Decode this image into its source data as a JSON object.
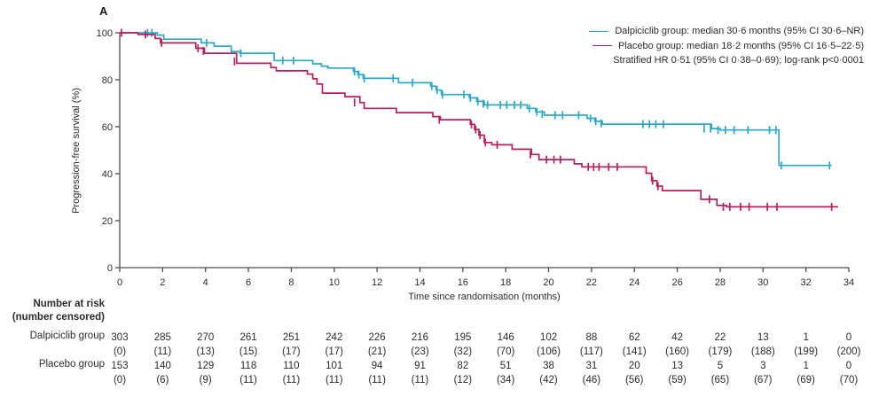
{
  "panel_label": "A",
  "colors": {
    "dalpiciclib": "#2BA8C8",
    "placebo": "#B81F5F",
    "axis": "#4d4d4d",
    "text": "#2b2b2b"
  },
  "legend": {
    "entries": [
      {
        "label": "Dalpiciclib group: median 30·6 months (95% CI 30·6–NR)",
        "color_key": "dalpiciclib"
      },
      {
        "label": "Placebo group: median 18·2 months (95% CI 16·5–22·5)",
        "color_key": "placebo"
      }
    ],
    "note": "Stratified HR 0·51 (95% CI 0·38–0·69); log-rank p<0·0001"
  },
  "chart_data": {
    "type": "line",
    "subtype": "kaplan-meier-step",
    "xlabel": "Time since randomisation (months)",
    "ylabel": "Progression-free survival (%)",
    "xlim": [
      0,
      34
    ],
    "ylim": [
      0,
      100
    ],
    "xticks": [
      0,
      2,
      4,
      6,
      8,
      10,
      12,
      14,
      16,
      18,
      20,
      22,
      24,
      26,
      28,
      30,
      32,
      34
    ],
    "yticks": [
      0,
      20,
      40,
      60,
      80,
      100
    ],
    "grid": false,
    "legend_position": "top-right",
    "series": [
      {
        "name": "Dalpiciclib group",
        "color": "#2BA8C8",
        "end_time": 33.2,
        "steps": [
          [
            0,
            100
          ],
          [
            1.75,
            99.0
          ],
          [
            2.05,
            97.3
          ],
          [
            3.8,
            95.7
          ],
          [
            4.4,
            94.3
          ],
          [
            5.2,
            92.0
          ],
          [
            5.6,
            91.3
          ],
          [
            7.2,
            88.2
          ],
          [
            9.0,
            86.8
          ],
          [
            9.4,
            85.8
          ],
          [
            9.7,
            85.0
          ],
          [
            10.9,
            83.5
          ],
          [
            11.1,
            82.2
          ],
          [
            11.35,
            80.6
          ],
          [
            13.0,
            78.7
          ],
          [
            14.5,
            77.3
          ],
          [
            14.75,
            75.6
          ],
          [
            15.0,
            73.7
          ],
          [
            16.3,
            72.3
          ],
          [
            16.65,
            70.8
          ],
          [
            17.0,
            69.3
          ],
          [
            19.0,
            67.8
          ],
          [
            19.4,
            66.3
          ],
          [
            19.8,
            64.9
          ],
          [
            21.8,
            63.6
          ],
          [
            22.15,
            62.3
          ],
          [
            22.5,
            61.1
          ],
          [
            27.6,
            59.2
          ],
          [
            28.0,
            58.6
          ],
          [
            30.74,
            43.5
          ]
        ],
        "censors": [
          [
            1.3,
            100
          ],
          [
            1.5,
            100
          ],
          [
            4.05,
            95.7
          ],
          [
            5.65,
            91.3
          ],
          [
            7.6,
            88.2
          ],
          [
            8.1,
            88.2
          ],
          [
            10.95,
            83.5
          ],
          [
            11.15,
            82.2
          ],
          [
            11.4,
            80.6
          ],
          [
            12.75,
            80.6
          ],
          [
            13.65,
            78.7
          ],
          [
            14.55,
            77.3
          ],
          [
            14.8,
            75.6
          ],
          [
            15.05,
            73.7
          ],
          [
            16.05,
            73.7
          ],
          [
            16.35,
            72.3
          ],
          [
            16.7,
            70.8
          ],
          [
            16.95,
            69.8
          ],
          [
            17.15,
            69.3
          ],
          [
            17.75,
            69.3
          ],
          [
            18.05,
            69.3
          ],
          [
            18.4,
            69.3
          ],
          [
            18.7,
            69.3
          ],
          [
            19.1,
            67.8
          ],
          [
            19.45,
            66.3
          ],
          [
            19.7,
            65.4
          ],
          [
            20.3,
            64.9
          ],
          [
            20.65,
            64.9
          ],
          [
            21.4,
            64.9
          ],
          [
            21.95,
            63.6
          ],
          [
            22.2,
            62.3
          ],
          [
            22.45,
            61.4
          ],
          [
            24.4,
            61.1
          ],
          [
            24.7,
            61.1
          ],
          [
            25.0,
            61.1
          ],
          [
            25.35,
            61.1
          ],
          [
            27.25,
            59.2
          ],
          [
            27.55,
            59.2
          ],
          [
            27.9,
            58.6
          ],
          [
            28.25,
            58.6
          ],
          [
            28.65,
            58.6
          ],
          [
            29.3,
            58.6
          ],
          [
            30.3,
            58.6
          ],
          [
            30.6,
            58.6
          ],
          [
            30.85,
            43.5
          ],
          [
            33.1,
            43.5
          ]
        ]
      },
      {
        "name": "Placebo group",
        "color": "#B81F5F",
        "end_time": 33.5,
        "steps": [
          [
            0,
            100
          ],
          [
            0.85,
            99.3
          ],
          [
            1.65,
            97.6
          ],
          [
            1.9,
            95.7
          ],
          [
            3.55,
            93.4
          ],
          [
            3.95,
            91.3
          ],
          [
            5.45,
            87.0
          ],
          [
            7.05,
            85.2
          ],
          [
            7.3,
            83.8
          ],
          [
            8.75,
            82.4
          ],
          [
            9.0,
            80.4
          ],
          [
            9.2,
            78.2
          ],
          [
            9.45,
            74.3
          ],
          [
            10.5,
            72.8
          ],
          [
            11.2,
            70.3
          ],
          [
            11.4,
            67.8
          ],
          [
            12.9,
            66.0
          ],
          [
            14.6,
            64.3
          ],
          [
            14.95,
            63.0
          ],
          [
            16.35,
            61.0
          ],
          [
            16.55,
            58.8
          ],
          [
            16.75,
            56.4
          ],
          [
            17.0,
            53.3
          ],
          [
            17.35,
            52.3
          ],
          [
            18.3,
            50.4
          ],
          [
            19.2,
            48.2
          ],
          [
            19.55,
            46.0
          ],
          [
            21.2,
            44.2
          ],
          [
            21.55,
            42.9
          ],
          [
            24.55,
            40.2
          ],
          [
            24.8,
            37.0
          ],
          [
            25.05,
            34.7
          ],
          [
            25.3,
            32.8
          ],
          [
            27.1,
            29.1
          ],
          [
            27.85,
            26.5
          ],
          [
            28.3,
            25.9
          ]
        ],
        "censors": [
          [
            0.08,
            100
          ],
          [
            1.2,
            99.3
          ],
          [
            1.95,
            95.7
          ],
          [
            3.65,
            93.4
          ],
          [
            3.9,
            92.3
          ],
          [
            5.35,
            87.8
          ],
          [
            10.95,
            70.3
          ],
          [
            14.9,
            63.0
          ],
          [
            16.4,
            61.0
          ],
          [
            16.6,
            58.8
          ],
          [
            16.8,
            56.4
          ],
          [
            17.05,
            53.3
          ],
          [
            17.6,
            52.3
          ],
          [
            19.15,
            48.2
          ],
          [
            19.9,
            46.0
          ],
          [
            20.25,
            46.0
          ],
          [
            20.55,
            46.0
          ],
          [
            21.85,
            42.9
          ],
          [
            22.1,
            42.9
          ],
          [
            22.35,
            42.9
          ],
          [
            22.8,
            42.9
          ],
          [
            23.2,
            42.9
          ],
          [
            24.85,
            37.0
          ],
          [
            25.1,
            34.7
          ],
          [
            27.5,
            29.1
          ],
          [
            28.15,
            25.9
          ],
          [
            28.45,
            25.9
          ],
          [
            28.95,
            25.9
          ],
          [
            29.35,
            25.9
          ],
          [
            30.2,
            25.9
          ],
          [
            30.65,
            25.9
          ],
          [
            33.2,
            25.9
          ]
        ]
      }
    ]
  },
  "risk_table": {
    "header_line1": "Number at risk",
    "header_line2": "(number censored)",
    "times": [
      0,
      2,
      4,
      6,
      8,
      10,
      12,
      14,
      16,
      18,
      20,
      22,
      24,
      26,
      28,
      30,
      32,
      34
    ],
    "rows": [
      {
        "label": "Dalpiciclib group",
        "at_risk": [
          303,
          285,
          270,
          261,
          251,
          242,
          226,
          216,
          195,
          146,
          102,
          88,
          62,
          42,
          22,
          13,
          1,
          0
        ],
        "censored": [
          0,
          11,
          13,
          15,
          17,
          17,
          21,
          23,
          32,
          70,
          106,
          117,
          141,
          160,
          179,
          188,
          199,
          200
        ]
      },
      {
        "label": "Placebo group",
        "at_risk": [
          153,
          140,
          129,
          118,
          110,
          101,
          94,
          91,
          82,
          51,
          38,
          31,
          20,
          13,
          5,
          3,
          1,
          0
        ],
        "censored": [
          0,
          6,
          9,
          11,
          11,
          11,
          11,
          11,
          12,
          34,
          42,
          46,
          56,
          59,
          65,
          67,
          69,
          70
        ]
      }
    ]
  }
}
